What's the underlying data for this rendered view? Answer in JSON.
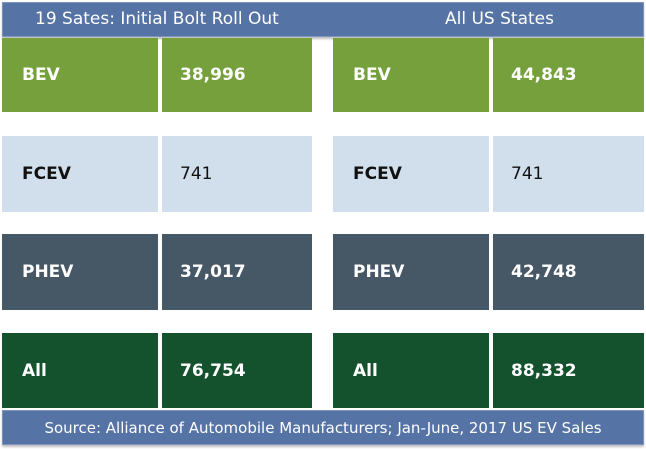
{
  "header": {
    "left_title": "19 Sates: Initial Bolt Roll Out",
    "right_title": "All US States"
  },
  "colors": {
    "header": "#5573a5",
    "BEV": "#76a03c",
    "FCEV": "#d0dfeb",
    "PHEV": "#465766",
    "All": "#14522d"
  },
  "left_table": [
    {
      "label": "BEV",
      "value": "38,996"
    },
    {
      "label": "FCEV",
      "value": "741"
    },
    {
      "label": "PHEV",
      "value": "37,017"
    },
    {
      "label": "All",
      "value": "76,754"
    }
  ],
  "right_table": [
    {
      "label": "BEV",
      "value": "44,843"
    },
    {
      "label": "FCEV",
      "value": "741"
    },
    {
      "label": "PHEV",
      "value": "42,748"
    },
    {
      "label": "All",
      "value": "88,332"
    }
  ],
  "footer": {
    "source": "Source: Alliance of Automobile Manufacturers; Jan-June, 2017 US EV Sales"
  }
}
